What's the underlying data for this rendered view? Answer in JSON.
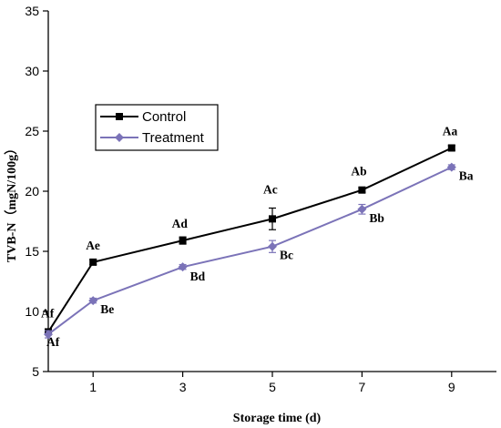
{
  "chart_data": {
    "type": "line",
    "xlabel": "Storage time (d)",
    "ylabel": "TVB-N（mgN/100g）",
    "x_ticks": [
      "1",
      "3",
      "5",
      "7",
      "9"
    ],
    "y_ticks": [
      "5",
      "10",
      "15",
      "20",
      "25",
      "30",
      "35"
    ],
    "xlim": [
      0,
      10
    ],
    "ylim": [
      5,
      35
    ],
    "legend_position": "upper-left",
    "series": [
      {
        "name": "Control",
        "color": "#000000",
        "marker": "square",
        "x": [
          0,
          1,
          3,
          5,
          7,
          9
        ],
        "y": [
          8.3,
          14.1,
          15.9,
          17.7,
          20.1,
          23.6
        ],
        "err": [
          0.2,
          0.2,
          0.3,
          0.9,
          0.2,
          0.2
        ],
        "labels": [
          "Af",
          "Ae",
          "Ad",
          "Ac",
          "Ab",
          "Aa"
        ]
      },
      {
        "name": "Treatment",
        "color": "#7b73b8",
        "marker": "diamond",
        "x": [
          0,
          1,
          3,
          5,
          7,
          9
        ],
        "y": [
          8.1,
          10.9,
          13.7,
          15.4,
          18.5,
          22.0
        ],
        "err": [
          0.3,
          0.2,
          0.2,
          0.5,
          0.4,
          0.2
        ],
        "labels": [
          "Af",
          "Be",
          "Bd",
          "Bc",
          "Bb",
          "Ba"
        ]
      }
    ]
  }
}
